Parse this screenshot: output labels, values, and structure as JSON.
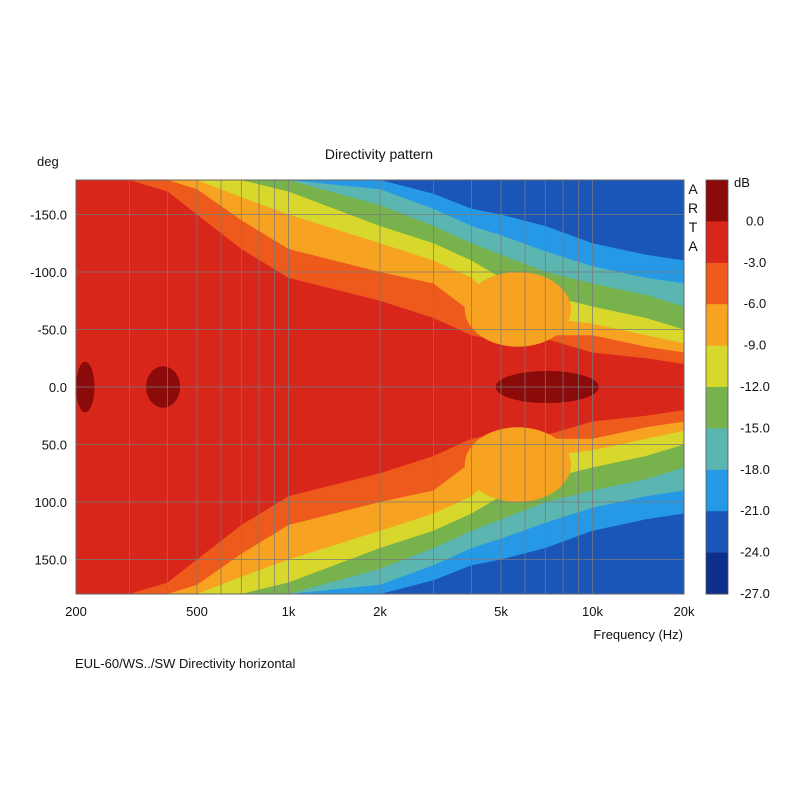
{
  "chart_data": {
    "type": "heatmap",
    "title": "Directivity pattern",
    "ylabel": "deg",
    "xlabel": "Frequency (Hz)",
    "caption": "EUL-60/WS../SW Directivity horizontal",
    "watermark": "ARTA",
    "colorbar_unit": "dB",
    "x_scale": "log",
    "xlim": [
      200,
      20000
    ],
    "ylim": [
      -180,
      180
    ],
    "x_ticks": [
      {
        "value": 200,
        "label": "200"
      },
      {
        "value": 500,
        "label": "500"
      },
      {
        "value": 1000,
        "label": "1k"
      },
      {
        "value": 2000,
        "label": "2k"
      },
      {
        "value": 5000,
        "label": "5k"
      },
      {
        "value": 10000,
        "label": "10k"
      },
      {
        "value": 20000,
        "label": "20k"
      }
    ],
    "x_gridlines": [
      300,
      400,
      500,
      600,
      700,
      800,
      900,
      1000,
      2000,
      3000,
      4000,
      5000,
      6000,
      7000,
      8000,
      9000,
      10000
    ],
    "y_ticks": [
      {
        "value": -150,
        "label": "-150.0"
      },
      {
        "value": -100,
        "label": "-100.0"
      },
      {
        "value": -50,
        "label": "-50.0"
      },
      {
        "value": 0,
        "label": "0.0"
      },
      {
        "value": 50,
        "label": "50.0"
      },
      {
        "value": 100,
        "label": "100.0"
      },
      {
        "value": 150,
        "label": "150.0"
      }
    ],
    "colorbar": [
      {
        "level": 0.0,
        "label": "0.0",
        "color": "#8b0a0a"
      },
      {
        "level": -3.0,
        "label": "-3.0",
        "color": "#d8261a"
      },
      {
        "level": -6.0,
        "label": "-6.0",
        "color": "#ee5a1c"
      },
      {
        "level": -9.0,
        "label": "-9.0",
        "color": "#f7a221"
      },
      {
        "level": -12.0,
        "label": "-12.0",
        "color": "#d7d72c"
      },
      {
        "level": -15.0,
        "label": "-15.0",
        "color": "#78b24c"
      },
      {
        "level": -18.0,
        "label": "-18.0",
        "color": "#5bb5b0"
      },
      {
        "level": -21.0,
        "label": "-21.0",
        "color": "#2599e6"
      },
      {
        "level": -24.0,
        "label": "-24.0",
        "color": "#1a56b8"
      },
      {
        "level": -27.0,
        "label": "-27.0",
        "color": "#0f2f8c"
      }
    ],
    "grid": true,
    "beamwidth_contours": [
      {
        "level": -6,
        "points": [
          [
            200,
            180
          ],
          [
            300,
            180
          ],
          [
            400,
            170
          ],
          [
            500,
            150
          ],
          [
            700,
            120
          ],
          [
            1000,
            95
          ],
          [
            2000,
            75
          ],
          [
            3000,
            60
          ],
          [
            4000,
            45
          ],
          [
            5000,
            40
          ],
          [
            7000,
            42
          ],
          [
            10000,
            30
          ],
          [
            15000,
            25
          ],
          [
            20000,
            20
          ]
        ]
      },
      {
        "level": -9,
        "points": [
          [
            200,
            180
          ],
          [
            300,
            180
          ],
          [
            400,
            180
          ],
          [
            500,
            172
          ],
          [
            700,
            145
          ],
          [
            1000,
            120
          ],
          [
            2000,
            100
          ],
          [
            3000,
            90
          ],
          [
            4000,
            65
          ],
          [
            5000,
            50
          ],
          [
            7000,
            45
          ],
          [
            10000,
            45
          ],
          [
            15000,
            35
          ],
          [
            20000,
            30
          ]
        ]
      },
      {
        "level": -12,
        "points": [
          [
            200,
            180
          ],
          [
            300,
            180
          ],
          [
            400,
            180
          ],
          [
            500,
            180
          ],
          [
            700,
            165
          ],
          [
            1000,
            150
          ],
          [
            2000,
            125
          ],
          [
            3000,
            110
          ],
          [
            4000,
            95
          ],
          [
            5000,
            70
          ],
          [
            7000,
            60
          ],
          [
            10000,
            55
          ],
          [
            15000,
            45
          ],
          [
            20000,
            38
          ]
        ]
      },
      {
        "level": -15,
        "points": [
          [
            200,
            180
          ],
          [
            300,
            180
          ],
          [
            400,
            180
          ],
          [
            500,
            180
          ],
          [
            700,
            180
          ],
          [
            1000,
            170
          ],
          [
            2000,
            140
          ],
          [
            3000,
            125
          ],
          [
            4000,
            110
          ],
          [
            5000,
            95
          ],
          [
            7000,
            80
          ],
          [
            10000,
            70
          ],
          [
            15000,
            60
          ],
          [
            20000,
            50
          ]
        ]
      },
      {
        "level": -18,
        "points": [
          [
            200,
            180
          ],
          [
            300,
            180
          ],
          [
            400,
            180
          ],
          [
            500,
            180
          ],
          [
            700,
            180
          ],
          [
            1000,
            180
          ],
          [
            2000,
            158
          ],
          [
            3000,
            140
          ],
          [
            4000,
            125
          ],
          [
            5000,
            115
          ],
          [
            7000,
            100
          ],
          [
            10000,
            90
          ],
          [
            15000,
            80
          ],
          [
            20000,
            70
          ]
        ]
      },
      {
        "level": -21,
        "points": [
          [
            200,
            180
          ],
          [
            300,
            180
          ],
          [
            400,
            180
          ],
          [
            500,
            180
          ],
          [
            700,
            180
          ],
          [
            1000,
            180
          ],
          [
            2000,
            172
          ],
          [
            3000,
            155
          ],
          [
            4000,
            140
          ],
          [
            5000,
            132
          ],
          [
            7000,
            118
          ],
          [
            10000,
            105
          ],
          [
            15000,
            95
          ],
          [
            20000,
            90
          ]
        ]
      },
      {
        "level": -24,
        "points": [
          [
            200,
            180
          ],
          [
            300,
            180
          ],
          [
            400,
            180
          ],
          [
            500,
            180
          ],
          [
            700,
            180
          ],
          [
            1000,
            180
          ],
          [
            2000,
            180
          ],
          [
            3000,
            168
          ],
          [
            4000,
            155
          ],
          [
            5000,
            150
          ],
          [
            7000,
            140
          ],
          [
            10000,
            125
          ],
          [
            15000,
            115
          ],
          [
            20000,
            110
          ]
        ]
      }
    ],
    "lobes": [
      {
        "level": -6,
        "f_min": 4500,
        "f_max": 7500,
        "deg_min": 45,
        "deg_max": 85
      },
      {
        "level": -9,
        "f_min": 3800,
        "f_max": 8500,
        "deg_min": 35,
        "deg_max": 100
      },
      {
        "level": 0,
        "f_min": 200,
        "f_max": 230,
        "deg_min": -22,
        "deg_max": 22
      },
      {
        "level": 0,
        "f_min": 340,
        "f_max": 440,
        "deg_min": -18,
        "deg_max": 18
      },
      {
        "level": 0,
        "f_min": 4800,
        "f_max": 10500,
        "deg_min": -14,
        "deg_max": 14
      }
    ]
  }
}
